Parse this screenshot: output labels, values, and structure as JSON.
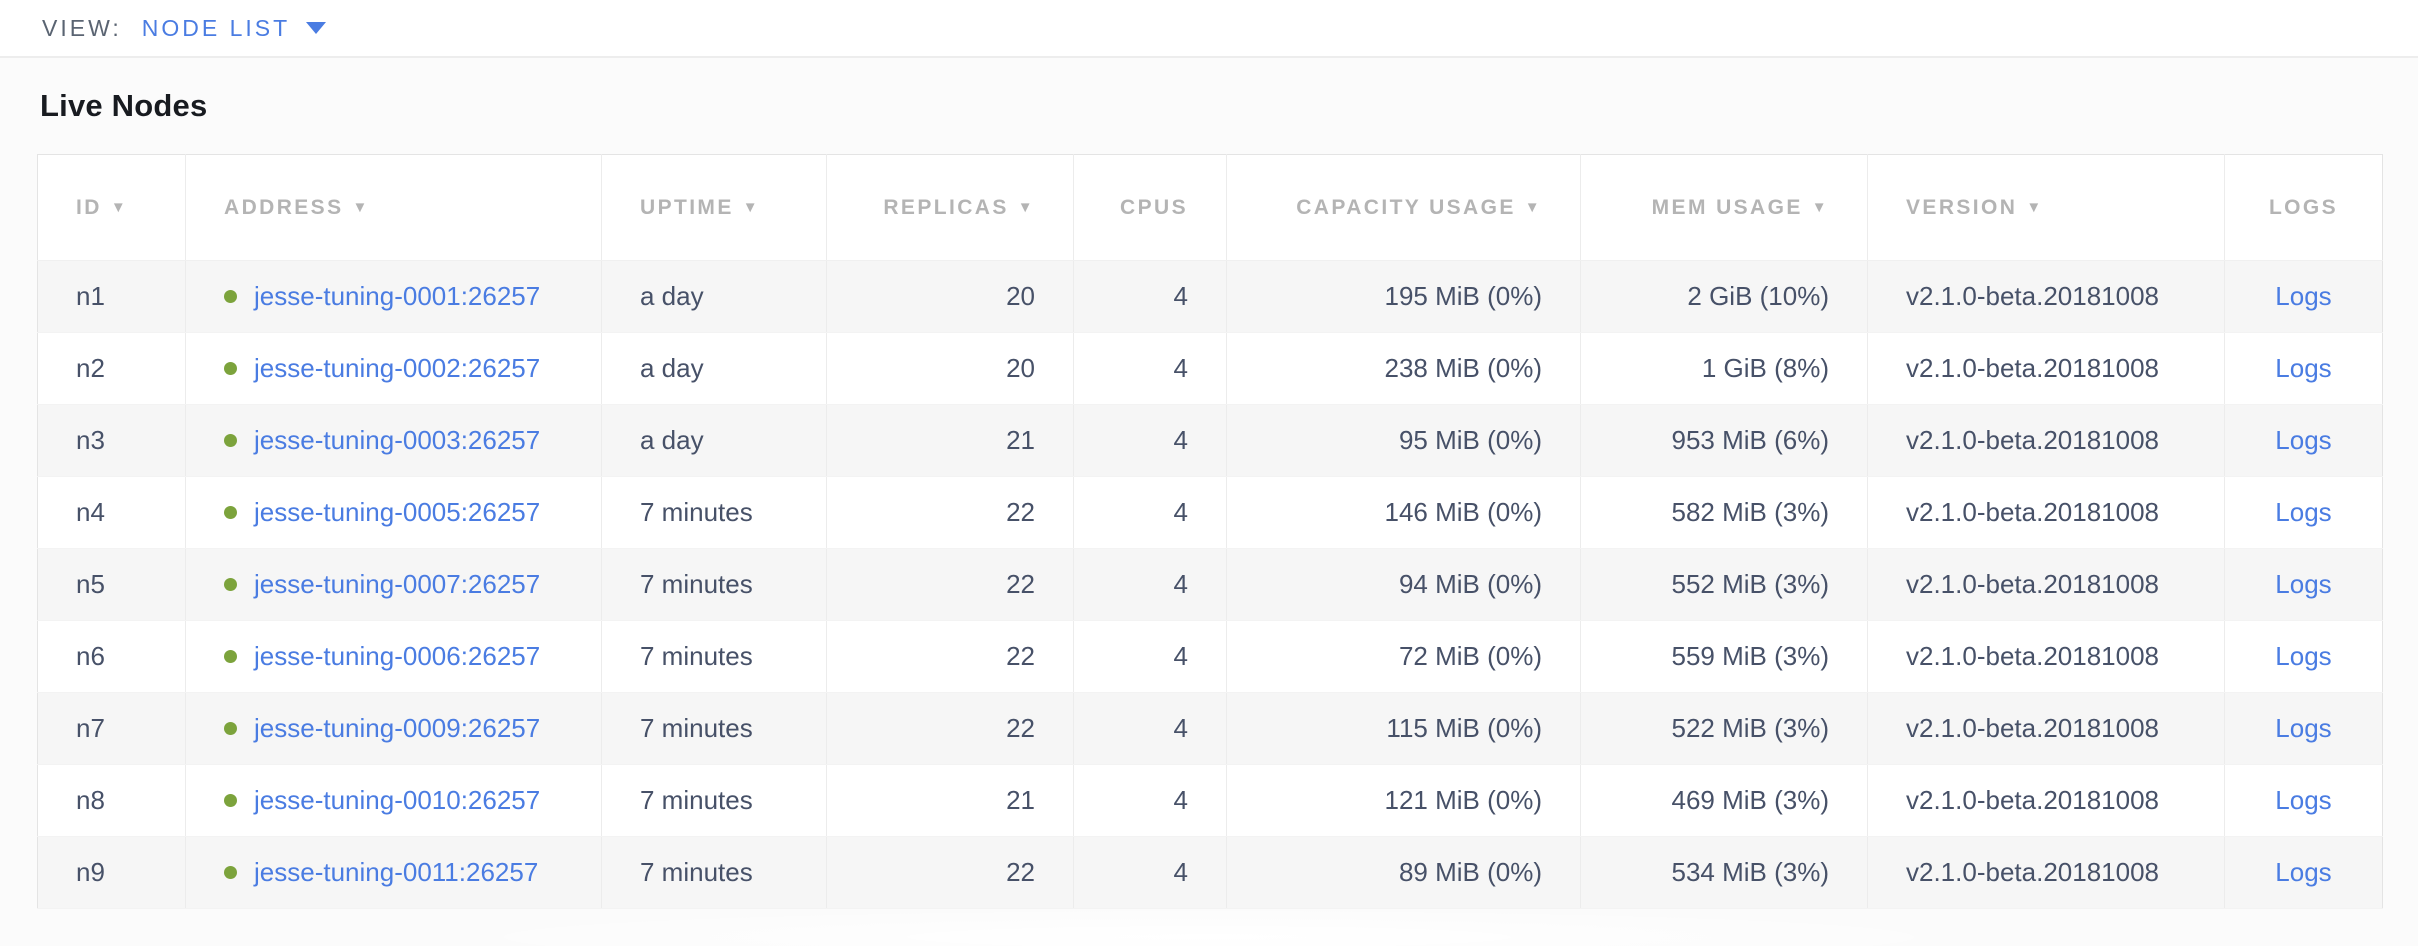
{
  "view_bar": {
    "label": "VIEW:",
    "selected": "NODE LIST"
  },
  "page": {
    "title": "Live Nodes"
  },
  "colors": {
    "accent_blue": "#4a7ce2",
    "live_green": "#7ca33c",
    "header_gray": "#b4b4b4",
    "body_text": "#475168",
    "stripe_gray": "#f6f6f6"
  },
  "table": {
    "sort_arrow_glyph": "▼",
    "logs_label": "Logs",
    "columns": [
      {
        "label": "ID",
        "sortable": true,
        "align": "left"
      },
      {
        "label": "ADDRESS",
        "sortable": true,
        "align": "left"
      },
      {
        "label": "UPTIME",
        "sortable": true,
        "align": "left"
      },
      {
        "label": "REPLICAS",
        "sortable": true,
        "align": "right"
      },
      {
        "label": "CPUS",
        "sortable": false,
        "align": "right"
      },
      {
        "label": "CAPACITY USAGE",
        "sortable": true,
        "align": "right"
      },
      {
        "label": "MEM USAGE",
        "sortable": true,
        "align": "right"
      },
      {
        "label": "VERSION",
        "sortable": true,
        "align": "left"
      },
      {
        "label": "LOGS",
        "sortable": false,
        "align": "center"
      }
    ],
    "rows": [
      {
        "id": "n1",
        "address": "jesse-tuning-0001:26257",
        "uptime": "a day",
        "replicas": "20",
        "cpus": "4",
        "capacity": "195 MiB (0%)",
        "mem": "2 GiB (10%)",
        "version": "v2.1.0-beta.20181008"
      },
      {
        "id": "n2",
        "address": "jesse-tuning-0002:26257",
        "uptime": "a day",
        "replicas": "20",
        "cpus": "4",
        "capacity": "238 MiB (0%)",
        "mem": "1 GiB (8%)",
        "version": "v2.1.0-beta.20181008"
      },
      {
        "id": "n3",
        "address": "jesse-tuning-0003:26257",
        "uptime": "a day",
        "replicas": "21",
        "cpus": "4",
        "capacity": "95 MiB (0%)",
        "mem": "953 MiB (6%)",
        "version": "v2.1.0-beta.20181008"
      },
      {
        "id": "n4",
        "address": "jesse-tuning-0005:26257",
        "uptime": "7 minutes",
        "replicas": "22",
        "cpus": "4",
        "capacity": "146 MiB (0%)",
        "mem": "582 MiB (3%)",
        "version": "v2.1.0-beta.20181008"
      },
      {
        "id": "n5",
        "address": "jesse-tuning-0007:26257",
        "uptime": "7 minutes",
        "replicas": "22",
        "cpus": "4",
        "capacity": "94 MiB (0%)",
        "mem": "552 MiB (3%)",
        "version": "v2.1.0-beta.20181008"
      },
      {
        "id": "n6",
        "address": "jesse-tuning-0006:26257",
        "uptime": "7 minutes",
        "replicas": "22",
        "cpus": "4",
        "capacity": "72 MiB (0%)",
        "mem": "559 MiB (3%)",
        "version": "v2.1.0-beta.20181008"
      },
      {
        "id": "n7",
        "address": "jesse-tuning-0009:26257",
        "uptime": "7 minutes",
        "replicas": "22",
        "cpus": "4",
        "capacity": "115 MiB (0%)",
        "mem": "522 MiB (3%)",
        "version": "v2.1.0-beta.20181008"
      },
      {
        "id": "n8",
        "address": "jesse-tuning-0010:26257",
        "uptime": "7 minutes",
        "replicas": "21",
        "cpus": "4",
        "capacity": "121 MiB (0%)",
        "mem": "469 MiB (3%)",
        "version": "v2.1.0-beta.20181008"
      },
      {
        "id": "n9",
        "address": "jesse-tuning-0011:26257",
        "uptime": "7 minutes",
        "replicas": "22",
        "cpus": "4",
        "capacity": "89 MiB (0%)",
        "mem": "534 MiB (3%)",
        "version": "v2.1.0-beta.20181008"
      }
    ]
  }
}
